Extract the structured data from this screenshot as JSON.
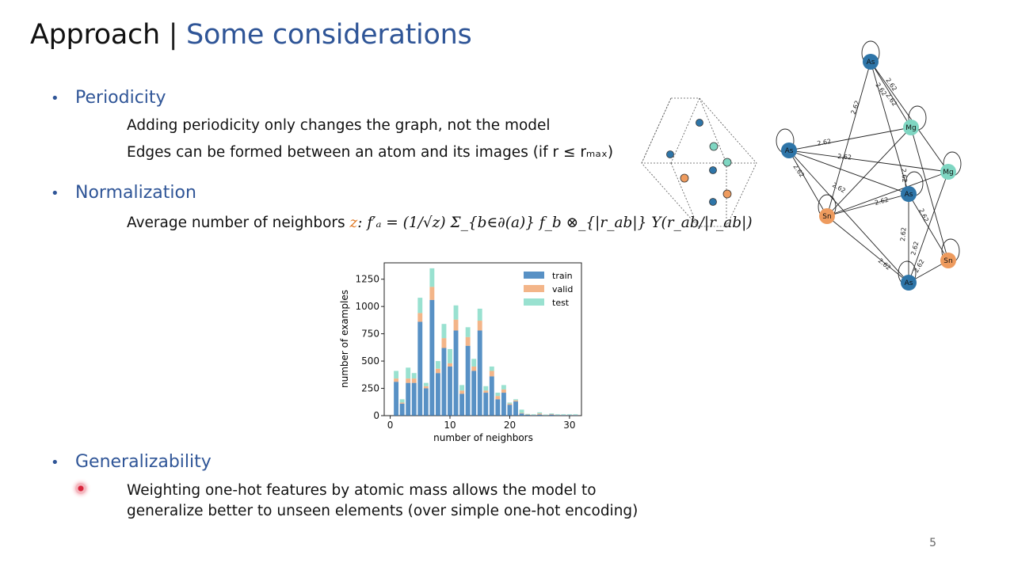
{
  "slide": {
    "title_main": "Approach",
    "title_sep": "|",
    "title_accent": "Some considerations",
    "page_number": "5"
  },
  "sections": [
    {
      "heading": "Periodicity",
      "lines": [
        "Adding periodicity only changes the graph, not the model",
        "Edges can be formed between an atom and its images (if r ≤ rₘₐₓ)"
      ]
    },
    {
      "heading": "Normalization",
      "line_prefix": "Average number of neighbors ",
      "line_var": "z",
      "line_formula": ": f′ₐ = (1/√z) Σ_{b∈∂(a)} f_b ⊗_{|r_ab|} Y(r_ab/|r_ab|)"
    },
    {
      "heading": "Generalizability",
      "lines": [
        "Weighting one-hot features by atomic mass allows the model to",
        "generalize better to unseen elements (over simple one-hot encoding)"
      ]
    }
  ],
  "graph": {
    "edge_label": "2.62",
    "nodes": [
      "As",
      "Mg",
      "As",
      "Mg",
      "As",
      "Sn",
      "Sn",
      "As"
    ],
    "colors": {
      "As": "#2e75a8",
      "Mg": "#7fd6c2",
      "Sn": "#ee9b5e"
    }
  },
  "chart_data": {
    "type": "bar",
    "xlabel": "number of neighbors",
    "ylabel": "number of examples",
    "xticks": [
      0,
      10,
      20,
      30
    ],
    "yticks": [
      0,
      250,
      500,
      750,
      1000,
      1250
    ],
    "ylim": [
      0,
      1400
    ],
    "xlim": [
      -1,
      32
    ],
    "legend_position": "top-right",
    "stacked": true,
    "x": [
      1,
      2,
      3,
      4,
      5,
      6,
      7,
      8,
      9,
      10,
      11,
      12,
      13,
      14,
      15,
      16,
      17,
      18,
      19,
      20,
      21,
      22,
      23,
      24,
      25,
      26,
      27,
      28,
      29,
      30,
      31
    ],
    "series": [
      {
        "name": "train",
        "color": "#2e75b6",
        "values": [
          310,
          110,
          300,
          300,
          860,
          250,
          1060,
          390,
          620,
          450,
          780,
          200,
          640,
          410,
          780,
          210,
          360,
          150,
          210,
          100,
          130,
          20,
          8,
          5,
          10,
          3,
          10,
          5,
          5,
          5,
          5
        ]
      },
      {
        "name": "valid",
        "color": "#f0a26b",
        "values": [
          30,
          10,
          40,
          40,
          80,
          20,
          120,
          40,
          90,
          30,
          100,
          30,
          80,
          40,
          90,
          20,
          50,
          30,
          30,
          10,
          10,
          5,
          3,
          2,
          10,
          2,
          5,
          2,
          2,
          2,
          2
        ]
      },
      {
        "name": "test",
        "color": "#7fd9c4",
        "values": [
          70,
          30,
          100,
          50,
          140,
          30,
          170,
          70,
          130,
          130,
          130,
          50,
          90,
          70,
          110,
          40,
          40,
          30,
          40,
          10,
          10,
          30,
          5,
          5,
          10,
          5,
          5,
          5,
          5,
          5,
          5
        ]
      }
    ]
  }
}
